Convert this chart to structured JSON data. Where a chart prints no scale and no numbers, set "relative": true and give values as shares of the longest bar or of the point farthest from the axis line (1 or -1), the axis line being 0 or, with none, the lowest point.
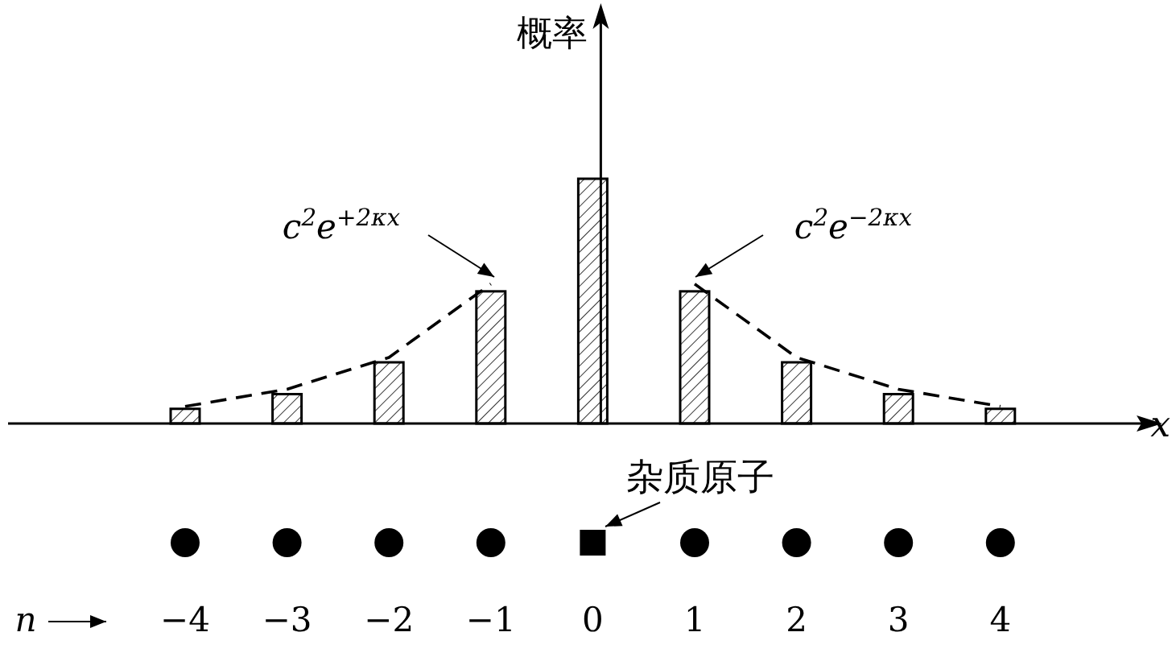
{
  "chart_data": {
    "type": "bar",
    "ylabel": "概率",
    "xlabel": "x",
    "relative": true,
    "categories": [
      "−4",
      "−3",
      "−2",
      "−1",
      "0",
      "1",
      "2",
      "3",
      "4"
    ],
    "series": [
      {
        "color": "#000000",
        "values": [
          0.06,
          0.12,
          0.25,
          0.54,
          1,
          0.54,
          0.25,
          0.12,
          0.06
        ]
      },
      {
        "type": "line",
        "color": "#000000",
        "line_style": "dashed",
        "values": [
          0.07,
          0.14,
          0.27,
          0.57,
          null,
          0.57,
          0.27,
          0.14,
          0.07
        ]
      }
    ],
    "annotations": [
      "c$^{2}$e$^{+2κx}$",
      "c$^{2}$e$^{−2κx}$",
      "杂质原子",
      "n"
    ]
  }
}
